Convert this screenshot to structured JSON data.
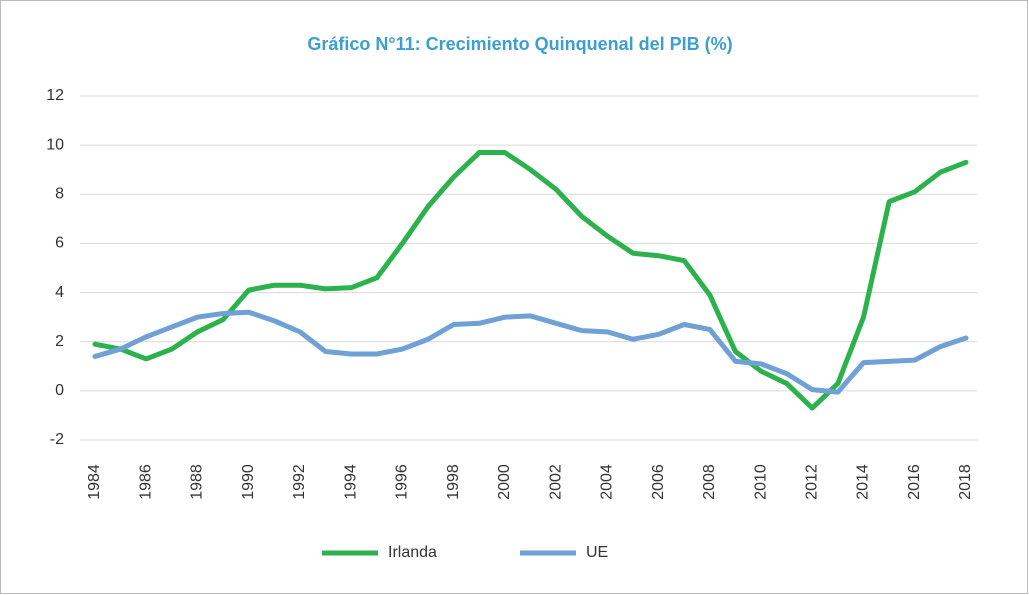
{
  "chart_data": {
    "type": "line",
    "title": "Gráfico N°11: Crecimiento Quinquenal del PIB (%)",
    "x": [
      1984,
      1985,
      1986,
      1987,
      1988,
      1989,
      1990,
      1991,
      1992,
      1993,
      1994,
      1995,
      1996,
      1997,
      1998,
      1999,
      2000,
      2001,
      2002,
      2003,
      2004,
      2005,
      2006,
      2007,
      2008,
      2009,
      2010,
      2011,
      2012,
      2013,
      2014,
      2015,
      2016,
      2017,
      2018
    ],
    "series": [
      {
        "name": "Irlanda",
        "color": "#2bb24c",
        "values": [
          1.9,
          1.7,
          1.3,
          1.7,
          2.4,
          2.9,
          4.1,
          4.3,
          4.3,
          4.15,
          4.2,
          4.6,
          6.0,
          7.5,
          8.7,
          9.7,
          9.7,
          9.0,
          8.2,
          7.1,
          6.3,
          5.6,
          5.5,
          5.3,
          3.9,
          1.6,
          0.8,
          0.3,
          -0.7,
          0.3,
          3.0,
          7.7,
          8.1,
          8.9,
          9.3
        ]
      },
      {
        "name": "UE",
        "color": "#6fa0d6",
        "values": [
          1.4,
          1.7,
          2.2,
          2.6,
          3.0,
          3.15,
          3.2,
          2.85,
          2.4,
          1.6,
          1.5,
          1.5,
          1.7,
          2.1,
          2.7,
          2.75,
          3.0,
          3.05,
          2.75,
          2.45,
          2.4,
          2.1,
          2.3,
          2.7,
          2.5,
          1.2,
          1.1,
          0.7,
          0.05,
          -0.05,
          1.15,
          1.2,
          1.25,
          1.8,
          2.15
        ]
      }
    ],
    "xlim": [
      1984,
      2018
    ],
    "xticks": [
      1984,
      1986,
      1988,
      1990,
      1992,
      1994,
      1996,
      1998,
      2000,
      2002,
      2004,
      2006,
      2008,
      2010,
      2012,
      2014,
      2016,
      2018
    ],
    "ylim": [
      -2,
      12
    ],
    "yticks": [
      -2,
      0,
      2,
      4,
      6,
      8,
      10,
      12
    ],
    "grid": true
  }
}
